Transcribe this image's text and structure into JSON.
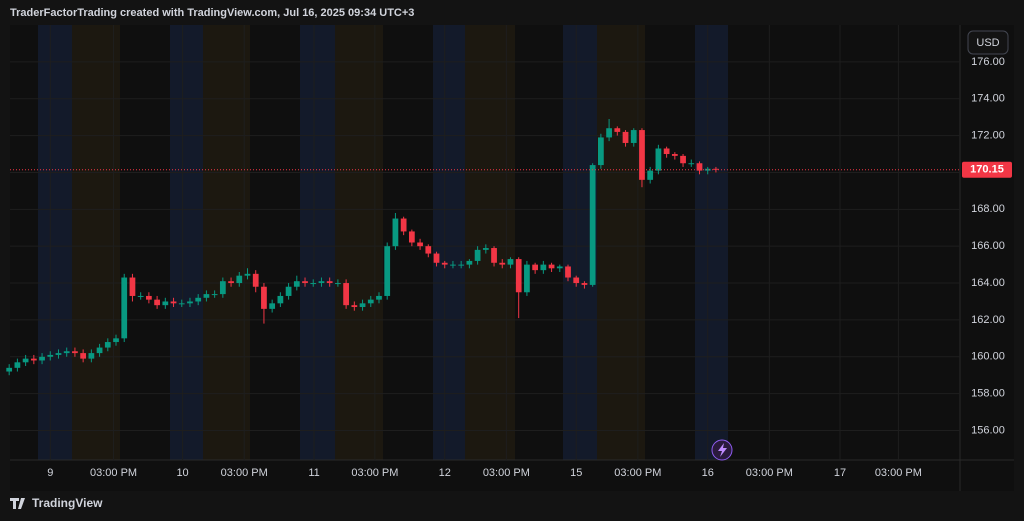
{
  "header": "TraderFactorTrading created with TradingView.com, Jul 16, 2025 09:34 UTC+3",
  "currency_button": "USD",
  "footer_logo": "TradingView",
  "chart_data": {
    "type": "candlestick",
    "up_color": "#089981",
    "down_color": "#f23645",
    "grid": true,
    "last_price": {
      "value": 170.15,
      "label": "170.15",
      "color": "#f23645"
    },
    "xlim": [
      -4.9,
      110.7
    ],
    "xticks": [
      {
        "value": 0,
        "label": "9"
      },
      {
        "value": 7.7,
        "label": "03:00 PM"
      },
      {
        "value": 16.1,
        "label": "10"
      },
      {
        "value": 23.6,
        "label": "03:00 PM"
      },
      {
        "value": 32.1,
        "label": "11"
      },
      {
        "value": 39.5,
        "label": "03:00 PM"
      },
      {
        "value": 48.0,
        "label": "12"
      },
      {
        "value": 55.5,
        "label": "03:00 PM"
      },
      {
        "value": 64.0,
        "label": "15"
      },
      {
        "value": 71.5,
        "label": "03:00 PM"
      },
      {
        "value": 80.0,
        "label": "16"
      },
      {
        "value": 87.5,
        "label": "03:00 PM"
      },
      {
        "value": 96.1,
        "label": "17"
      },
      {
        "value": 103.2,
        "label": "03:00 PM"
      }
    ],
    "ylim": [
      154.4,
      178.0
    ],
    "yticks": [
      {
        "value": 156,
        "label": "156.00"
      },
      {
        "value": 158,
        "label": "158.00"
      },
      {
        "value": 160,
        "label": "160.00"
      },
      {
        "value": 162,
        "label": "162.00"
      },
      {
        "value": 164,
        "label": "164.00"
      },
      {
        "value": 166,
        "label": "166.00"
      },
      {
        "value": 168,
        "label": "168.00"
      },
      {
        "value": 170,
        "label": "170.00"
      },
      {
        "value": 172,
        "label": "172.00"
      },
      {
        "value": 174,
        "label": "174.00"
      },
      {
        "value": 176,
        "label": "176.00"
      }
    ],
    "x": [
      -5,
      -4,
      -3,
      -2,
      -1,
      0,
      1,
      2,
      3,
      4,
      5,
      6,
      7,
      8,
      9,
      10,
      11,
      12,
      13,
      14,
      15,
      16,
      17,
      18,
      19,
      20,
      21,
      22,
      23,
      24,
      25,
      26,
      27,
      28,
      29,
      30,
      31,
      32,
      33,
      34,
      35,
      36,
      37,
      38,
      39,
      40,
      41,
      42,
      43,
      44,
      45,
      46,
      47,
      48,
      49,
      50,
      51,
      52,
      53,
      54,
      55,
      56,
      57,
      58,
      59,
      60,
      61,
      62,
      63,
      64,
      65,
      66,
      67,
      68,
      69,
      70,
      71,
      72,
      73,
      74,
      75,
      76,
      77,
      78,
      79,
      80,
      81
    ],
    "open": [
      159.2,
      159.4,
      159.7,
      159.9,
      159.8,
      160.0,
      160.1,
      160.2,
      160.3,
      160.2,
      159.9,
      160.2,
      160.5,
      160.8,
      161.0,
      164.3,
      163.3,
      163.3,
      163.1,
      162.8,
      163.0,
      162.9,
      162.9,
      163.0,
      163.2,
      163.4,
      163.4,
      164.1,
      164.0,
      164.4,
      164.5,
      163.8,
      162.6,
      162.9,
      163.3,
      163.8,
      164.1,
      164.0,
      164.0,
      164.1,
      164.0,
      164.0,
      162.8,
      162.7,
      162.9,
      163.1,
      163.3,
      166.0,
      167.5,
      166.8,
      166.2,
      166.0,
      165.6,
      165.1,
      165.0,
      165.0,
      165.0,
      165.2,
      165.8,
      165.9,
      165.1,
      165.0,
      165.3,
      163.5,
      165.0,
      164.7,
      165.0,
      164.8,
      164.9,
      164.3,
      164.0,
      163.9,
      170.4,
      171.9,
      172.4,
      172.2,
      171.6,
      172.3,
      169.6,
      170.1,
      171.3,
      171.0,
      170.9,
      170.5,
      170.5,
      170.1,
      170.2
    ],
    "high": [
      159.6,
      159.9,
      160.1,
      160.1,
      160.2,
      160.3,
      160.4,
      160.5,
      160.5,
      160.4,
      160.4,
      160.7,
      161.0,
      161.2,
      164.5,
      164.5,
      163.5,
      163.5,
      163.3,
      163.2,
      163.2,
      163.1,
      163.2,
      163.4,
      163.6,
      163.6,
      164.3,
      164.3,
      164.6,
      164.8,
      164.7,
      164.0,
      163.1,
      163.5,
      164.0,
      164.4,
      164.3,
      164.2,
      164.3,
      164.3,
      164.2,
      164.2,
      163.0,
      163.1,
      163.3,
      163.5,
      166.2,
      167.8,
      167.6,
      166.9,
      166.4,
      166.1,
      165.7,
      165.2,
      165.2,
      165.2,
      165.3,
      166.0,
      166.1,
      166.0,
      165.3,
      165.4,
      165.4,
      165.2,
      165.1,
      165.2,
      165.1,
      165.0,
      165.0,
      164.4,
      164.1,
      170.5,
      172.1,
      172.9,
      172.5,
      172.3,
      172.4,
      172.4,
      170.3,
      171.5,
      171.4,
      171.1,
      171.0,
      170.7,
      170.6,
      170.3,
      170.3
    ],
    "low": [
      159.0,
      159.2,
      159.5,
      159.6,
      159.6,
      159.8,
      159.9,
      160.0,
      160.0,
      159.7,
      159.7,
      160.0,
      160.3,
      160.6,
      160.8,
      163.0,
      163.1,
      162.9,
      162.6,
      162.6,
      162.7,
      162.7,
      162.7,
      162.8,
      163.0,
      163.2,
      163.2,
      163.8,
      163.8,
      164.2,
      163.5,
      161.8,
      162.4,
      162.7,
      163.1,
      163.6,
      163.8,
      163.8,
      163.8,
      163.8,
      163.8,
      162.6,
      162.5,
      162.5,
      162.7,
      162.9,
      163.1,
      165.8,
      166.6,
      166.0,
      165.8,
      165.4,
      164.9,
      164.8,
      164.8,
      164.8,
      164.8,
      165.0,
      165.6,
      164.9,
      164.8,
      164.8,
      162.1,
      163.3,
      164.5,
      164.5,
      164.6,
      164.6,
      164.1,
      163.8,
      163.7,
      163.8,
      170.2,
      171.7,
      172.0,
      171.4,
      171.4,
      169.2,
      169.4,
      169.9,
      170.8,
      170.7,
      170.3,
      170.3,
      169.9,
      169.9,
      170.0
    ],
    "close": [
      159.4,
      159.7,
      159.9,
      159.8,
      160.0,
      160.1,
      160.2,
      160.3,
      160.2,
      159.9,
      160.2,
      160.5,
      160.8,
      161.0,
      164.3,
      163.3,
      163.3,
      163.1,
      162.8,
      163.0,
      162.9,
      162.9,
      163.0,
      163.2,
      163.4,
      163.4,
      164.1,
      164.0,
      164.4,
      164.5,
      163.8,
      162.6,
      162.9,
      163.3,
      163.8,
      164.1,
      164.0,
      164.0,
      164.1,
      164.0,
      164.0,
      162.8,
      162.7,
      162.9,
      163.1,
      163.3,
      166.0,
      167.5,
      166.8,
      166.2,
      166.0,
      165.6,
      165.1,
      165.0,
      165.0,
      165.0,
      165.2,
      165.8,
      165.9,
      165.1,
      165.0,
      165.3,
      163.5,
      165.0,
      164.7,
      165.0,
      164.8,
      164.9,
      164.3,
      164.0,
      163.9,
      170.4,
      171.9,
      172.4,
      172.2,
      171.6,
      172.3,
      169.6,
      170.1,
      171.3,
      171.0,
      170.9,
      170.5,
      170.5,
      170.1,
      170.2,
      170.15
    ]
  }
}
